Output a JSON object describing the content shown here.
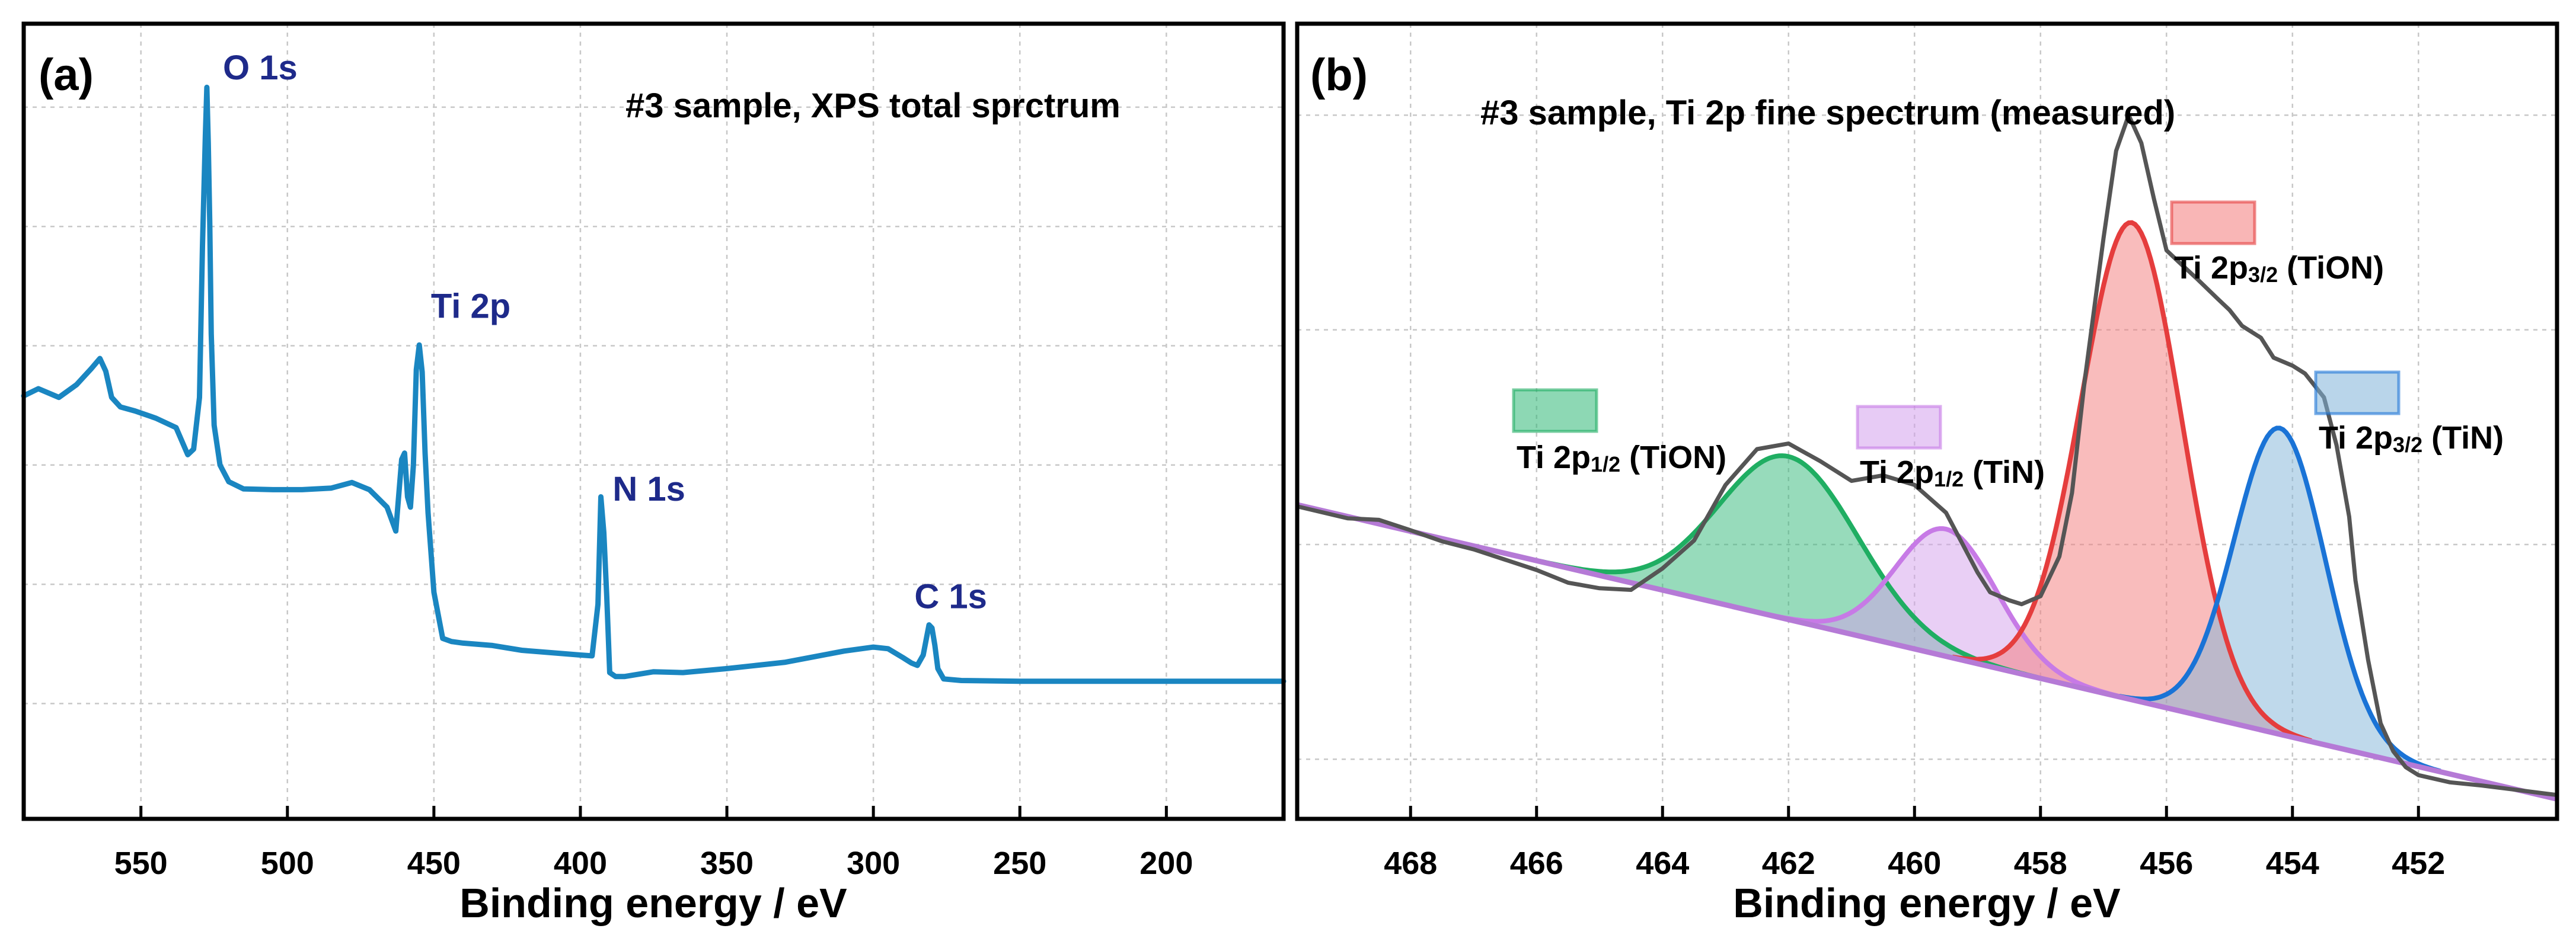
{
  "chart_data": [
    {
      "type": "line",
      "panel_label": "(a)",
      "title": "#3 sample, XPS total sprctrum",
      "xlabel": "Binding energy / eV",
      "ylabel": "",
      "xlim": [
        590,
        160
      ],
      "ylim": [
        0,
        100
      ],
      "xticks": [
        550,
        500,
        450,
        400,
        350,
        300,
        250,
        200
      ],
      "grid": true,
      "line_color": "#1a86c1",
      "label_color": "#1e2a8a",
      "series": [
        {
          "name": "XPS total spectrum",
          "x": [
            590,
            585,
            578,
            572,
            567,
            564,
            562,
            560,
            557,
            552,
            545,
            538,
            534,
            532,
            530,
            529,
            528,
            527.5,
            527,
            526.5,
            526,
            525,
            523,
            520,
            515,
            505,
            495,
            485,
            478,
            472,
            466,
            463,
            461,
            460,
            459,
            458,
            457,
            456,
            455,
            454,
            453,
            452,
            450,
            447,
            444,
            440,
            430,
            420,
            410,
            400,
            396,
            394,
            393,
            392,
            391,
            390,
            388,
            385,
            375,
            365,
            350,
            340,
            330,
            320,
            310,
            300,
            295,
            290,
            287,
            285,
            283,
            282,
            281,
            280,
            279,
            278,
            276,
            270,
            250,
            220,
            190,
            160
          ],
          "y": [
            53.2,
            54.1,
            53.0,
            54.6,
            56.6,
            57.9,
            56.3,
            53.0,
            51.8,
            51.3,
            50.4,
            49.2,
            45.8,
            46.5,
            53,
            72,
            86,
            92.0,
            85,
            75,
            61,
            49.5,
            44.5,
            42.4,
            41.5,
            41.4,
            41.4,
            41.6,
            42.3,
            41.4,
            39.2,
            36.2,
            45.2,
            46.0,
            40.5,
            39.2,
            44.5,
            56.5,
            59.6,
            56.2,
            46,
            38.5,
            28.5,
            22.7,
            22.3,
            22.1,
            21.8,
            21.2,
            20.9,
            20.6,
            20.5,
            27,
            40.5,
            36.0,
            28,
            18.4,
            17.9,
            17.9,
            18.5,
            18.4,
            18.9,
            19.3,
            19.7,
            20.4,
            21.1,
            21.6,
            21.4,
            20.3,
            19.6,
            19.3,
            20.6,
            22.5,
            24.4,
            24.0,
            21.8,
            18.9,
            17.6,
            17.4,
            17.3,
            17.3,
            17.3,
            17.3
          ]
        }
      ],
      "annotations": [
        {
          "text": "O 1s",
          "x": 522,
          "y": 93
        },
        {
          "text": "Ti 2p",
          "x": 451,
          "y": 63
        },
        {
          "text": "N 1s",
          "x": 389,
          "y": 40
        },
        {
          "text": "C 1s",
          "x": 286,
          "y": 26.5
        }
      ]
    },
    {
      "type": "area",
      "panel_label": "(b)",
      "title": "#3 sample, Ti 2p fine spectrum (measured)",
      "xlabel": "Binding energy / eV",
      "ylabel": "",
      "xlim": [
        469.8,
        449.8
      ],
      "ylim": [
        0,
        100
      ],
      "xticks": [
        468,
        466,
        464,
        462,
        460,
        458,
        456,
        454,
        452
      ],
      "grid": true,
      "background": {
        "x": [
          469.8,
          449.8
        ],
        "y": [
          39.5,
          2.5
        ],
        "color": "#b57ad6"
      },
      "series": [
        {
          "name": "Measured",
          "color": "#555555",
          "x": [
            469.8,
            469,
            468.5,
            468,
            467.5,
            467,
            466.5,
            466,
            465.5,
            465,
            464.5,
            464,
            463.5,
            463,
            462.5,
            462,
            461.5,
            461,
            460.5,
            460,
            459.5,
            459,
            458.8,
            458.5,
            458.3,
            458,
            457.7,
            457.5,
            457.3,
            457,
            456.8,
            456.6,
            456.4,
            456.2,
            456,
            455.8,
            455.5,
            455.2,
            455,
            454.8,
            454.5,
            454.3,
            454,
            453.8,
            453.5,
            453.3,
            453.1,
            453,
            452.8,
            452.6,
            452.4,
            452.2,
            452,
            451.5,
            451,
            450.5,
            450,
            449.8
          ],
          "y": [
            39.3,
            37.8,
            37.6,
            36.3,
            34.9,
            33.9,
            32.6,
            31.3,
            29.7,
            29.0,
            28.8,
            31.5,
            35,
            42,
            46.5,
            47.2,
            45,
            42.5,
            43.2,
            42.0,
            38.5,
            31.0,
            28.5,
            27.5,
            27.0,
            28.0,
            33.0,
            41.0,
            55,
            73,
            84,
            88.5,
            85,
            78,
            71.5,
            70.0,
            67.8,
            65.5,
            64.0,
            62.0,
            60.5,
            58.0,
            57.0,
            56.0,
            53.0,
            47.0,
            38,
            30,
            20,
            12,
            8.5,
            6.5,
            5.5,
            4.6,
            4.2,
            3.7,
            3.2,
            3.0
          ]
        },
        {
          "name": "Ti 2p1/2 (TiON)",
          "label": "Ti 2p",
          "sub": "1/2",
          "tag": " (TiON)",
          "color": "#1fae62",
          "fill": "#2fb877",
          "center": 462.0,
          "height": 20.5,
          "sigma": 1.1
        },
        {
          "name": "Ti 2p1/2 (TiN)",
          "label": "Ti 2p",
          "sub": "1/2",
          "tag": " (TiN)",
          "color": "#c77ae6",
          "fill": "#d3a0ec",
          "center": 459.5,
          "height": 16.0,
          "sigma": 0.8
        },
        {
          "name": "Ti 2p3/2 (TiON)",
          "label": "Ti 2p",
          "sub": "3/2",
          "tag": " (TiON)",
          "color": "#e53d3d",
          "fill": "#f47a7a",
          "center": 456.55,
          "height": 60.0,
          "sigma": 0.8
        },
        {
          "name": "Ti 2p3/2 (TiN)",
          "label": "Ti 2p",
          "sub": "3/2",
          "tag": " (TiN)",
          "color": "#1a73d6",
          "fill": "#7fb3d8",
          "center": 454.2,
          "height": 38.5,
          "sigma": 0.72
        }
      ]
    }
  ]
}
